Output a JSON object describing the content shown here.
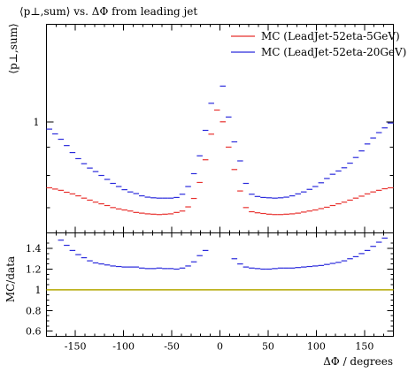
{
  "chart_data": {
    "type": "line",
    "title": "⟨p⊥,sum⟩ vs. ΔΦ from leading jet",
    "top_panel": {
      "ylabel": "⟨p⊥,sum⟩",
      "yticks": [
        {
          "value": 1,
          "label": "1"
        }
      ],
      "ylim": [
        0.63,
        1.5
      ],
      "log_scale": true
    },
    "ratio_panel": {
      "ylabel": "MC/data",
      "ylim": [
        0.55,
        1.55
      ],
      "yticks": [
        {
          "value": 0.6,
          "label": "0.6"
        },
        {
          "value": 0.8,
          "label": "0.8"
        },
        {
          "value": 1.0,
          "label": "1"
        },
        {
          "value": 1.2,
          "label": "1.2"
        },
        {
          "value": 1.4,
          "label": "1.4"
        }
      ],
      "reference_line": {
        "value": 1.0,
        "color": "#b5a800"
      }
    },
    "xlabel": "ΔΦ / degrees",
    "xlim": [
      -180,
      180
    ],
    "xticks": [
      {
        "value": -150,
        "label": "-150"
      },
      {
        "value": -100,
        "label": "-100"
      },
      {
        "value": -50,
        "label": "-50"
      },
      {
        "value": 0,
        "label": "0"
      },
      {
        "value": 50,
        "label": "50"
      },
      {
        "value": 100,
        "label": "100"
      },
      {
        "value": 150,
        "label": "150"
      }
    ],
    "legend_position": "top-right",
    "x": [
      -177,
      -171,
      -165,
      -159,
      -153,
      -147,
      -141,
      -135,
      -129,
      -123,
      -117,
      -111,
      -105,
      -99,
      -93,
      -87,
      -81,
      -75,
      -69,
      -63,
      -57,
      -51,
      -45,
      -39,
      -33,
      -27,
      -21,
      -15,
      -9,
      -3,
      3,
      9,
      15,
      21,
      27,
      33,
      39,
      45,
      51,
      57,
      63,
      69,
      75,
      81,
      87,
      93,
      99,
      105,
      111,
      117,
      123,
      129,
      135,
      141,
      147,
      153,
      159,
      165,
      171,
      177
    ],
    "series": [
      {
        "name": "MC (LeadJet-52eta-5GeV)",
        "color": "#e8312e",
        "values": [
          0.76,
          0.756,
          0.752,
          0.746,
          0.741,
          0.735,
          0.728,
          0.722,
          0.716,
          0.711,
          0.706,
          0.7,
          0.696,
          0.693,
          0.69,
          0.686,
          0.684,
          0.682,
          0.681,
          0.68,
          0.681,
          0.682,
          0.686,
          0.69,
          0.702,
          0.727,
          0.777,
          0.854,
          0.95,
          1.05,
          1.0,
          0.9,
          0.82,
          0.75,
          0.7,
          0.688,
          0.685,
          0.683,
          0.681,
          0.68,
          0.68,
          0.681,
          0.682,
          0.684,
          0.687,
          0.69,
          0.693,
          0.697,
          0.701,
          0.706,
          0.711,
          0.716,
          0.722,
          0.728,
          0.734,
          0.741,
          0.747,
          0.752,
          0.757,
          0.76
        ]
      },
      {
        "name": "MC (LeadJet-52eta-20GeV)",
        "color": "#2a2adc",
        "values": [
          0.97,
          0.951,
          0.93,
          0.906,
          0.88,
          0.858,
          0.84,
          0.825,
          0.813,
          0.8,
          0.787,
          0.774,
          0.764,
          0.754,
          0.747,
          0.742,
          0.735,
          0.731,
          0.729,
          0.728,
          0.728,
          0.728,
          0.73,
          0.74,
          0.764,
          0.806,
          0.868,
          0.965,
          1.08,
          1.52,
          1.16,
          1.02,
          0.92,
          0.85,
          0.774,
          0.74,
          0.733,
          0.73,
          0.729,
          0.728,
          0.729,
          0.731,
          0.735,
          0.741,
          0.747,
          0.755,
          0.764,
          0.776,
          0.79,
          0.804,
          0.815,
          0.826,
          0.842,
          0.862,
          0.886,
          0.912,
          0.935,
          0.956,
          0.975,
          0.995
        ]
      }
    ],
    "ratio": {
      "series_name": "MC (LeadJet-52eta-20GeV)",
      "values": [
        1.62,
        1.55,
        1.48,
        1.43,
        1.38,
        1.34,
        1.31,
        1.28,
        1.26,
        1.25,
        1.24,
        1.23,
        1.225,
        1.22,
        1.22,
        1.22,
        1.21,
        1.205,
        1.205,
        1.21,
        1.205,
        1.205,
        1.2,
        1.21,
        1.23,
        1.27,
        1.33,
        1.38,
        null,
        null,
        null,
        null,
        1.3,
        1.25,
        1.22,
        1.21,
        1.205,
        1.2,
        1.2,
        1.205,
        1.21,
        1.21,
        1.21,
        1.215,
        1.22,
        1.225,
        1.23,
        1.235,
        1.245,
        1.255,
        1.265,
        1.28,
        1.3,
        1.32,
        1.35,
        1.38,
        1.42,
        1.46,
        1.5,
        1.56
      ]
    }
  }
}
